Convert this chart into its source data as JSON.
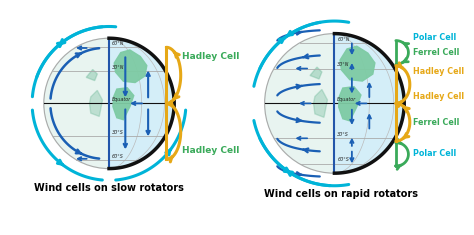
{
  "bg_color": "#ffffff",
  "globe_ocean_color": "#d4eef8",
  "globe_ocean_left_color": "#e8f4f0",
  "land_color": "#7ecba4",
  "land_color2": "#6db898",
  "globe_outline_color": "#111111",
  "globe_gray_color": "#cccccc",
  "title_left": "Wind cells on slow rotators",
  "title_right": "Wind cells on rapid rotators",
  "blue": "#1a5fb4",
  "cyan": "#00b4d8",
  "gold": "#e6a817",
  "green": "#3aaa5a",
  "slow_labels": [
    {
      "text": "Hadley Cell",
      "color": "#3aaa5a"
    },
    {
      "text": "Hadley Cell",
      "color": "#3aaa5a"
    }
  ],
  "rapid_labels": [
    {
      "text": "Polar Cell",
      "color": "#00b4d8"
    },
    {
      "text": "Ferrel Cell",
      "color": "#3aaa5a"
    },
    {
      "text": "Hadley Cell",
      "color": "#e6a817"
    },
    {
      "text": "Hadley Cell",
      "color": "#e6a817"
    },
    {
      "text": "Ferrel Cell",
      "color": "#3aaa5a"
    },
    {
      "text": "Polar Cell",
      "color": "#00b4d8"
    }
  ]
}
